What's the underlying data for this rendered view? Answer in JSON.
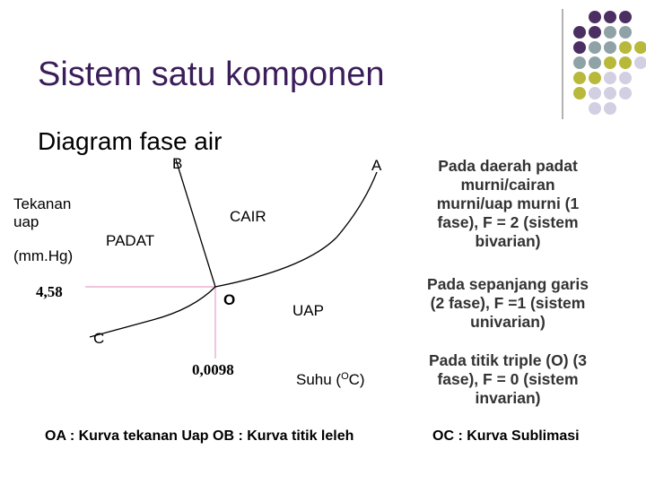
{
  "header": {
    "title": "Sistem satu komponen",
    "subtitle": "Diagram fase air"
  },
  "diagram": {
    "y_axis_label": [
      "Tekanan",
      "uap"
    ],
    "y_axis_unit": "(mm.Hg)",
    "x_axis_label": {
      "before": "Suhu (",
      "sup": "O",
      "after": "C)"
    },
    "pressure_mark": "4,58",
    "temperature_mark": "0,0098",
    "points": {
      "A": "A",
      "B": "B",
      "C": "C",
      "O": "O"
    },
    "regions": {
      "solid": "PADAT",
      "liquid": "CAIR",
      "vapor": "UAP"
    }
  },
  "notes": [
    [
      "Pada daerah padat",
      "murni/cairan",
      "murni/uap murni (1",
      "fase), F = 2 (sistem",
      "bivarian)"
    ],
    [
      "Pada sepanjang garis",
      "(2 fase), F =1 (sistem",
      "univarian)"
    ],
    [
      "Pada titik triple (O) (3",
      "fase), F = 0 (sistem",
      "invarian)"
    ]
  ],
  "footer": [
    "OA : Kurva tekanan Uap  OB : Kurva titik leleh",
    "OC : Kurva Sublimasi"
  ]
}
